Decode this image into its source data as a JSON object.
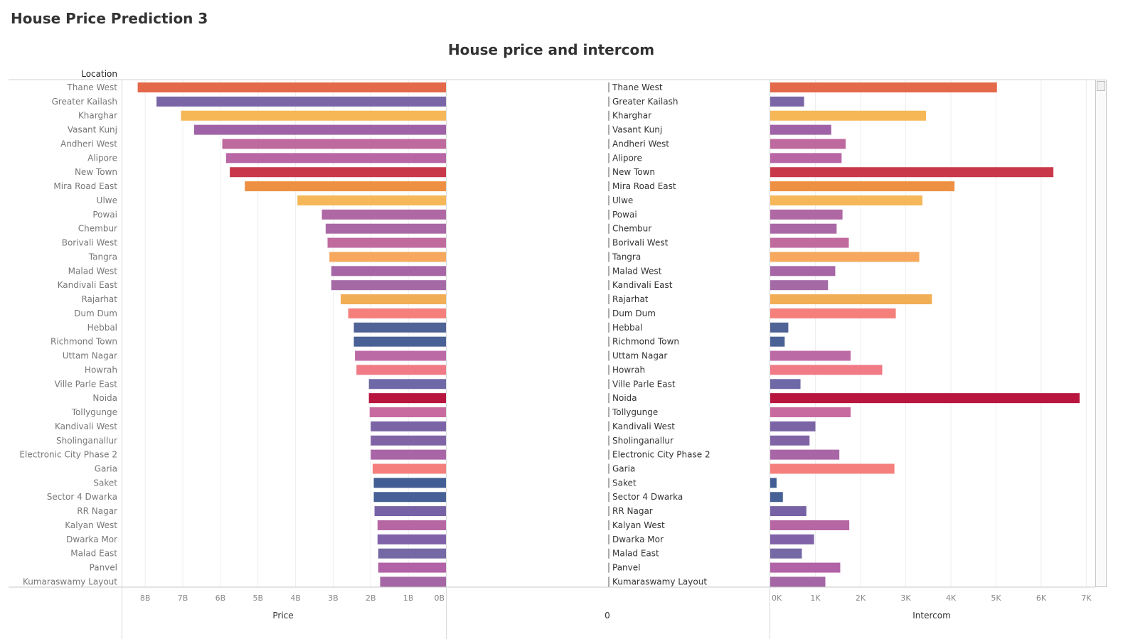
{
  "dashboard": {
    "title": "House Price Prediction 3"
  },
  "chart_data": {
    "type": "bar",
    "title": "House price and intercom",
    "row_header": "Location",
    "orientation": "horizontal",
    "grid": true,
    "categories": [
      "Thane West",
      "Greater Kailash",
      "Kharghar",
      "Vasant Kunj",
      "Andheri West",
      "Alipore",
      "New Town",
      "Mira Road East",
      "Ulwe",
      "Powai",
      "Chembur",
      "Borivali West",
      "Tangra",
      "Malad West",
      "Kandivali East",
      "Rajarhat",
      "Dum Dum",
      "Hebbal",
      "Richmond Town",
      "Uttam Nagar",
      "Howrah",
      "Ville Parle East",
      "Noida",
      "Tollygunge",
      "Kandivali West",
      "Sholinganallur",
      "Electronic City Phase 2",
      "Garia",
      "Saket",
      "Sector 4 Dwarka",
      "RR Nagar",
      "Kalyan West",
      "Dwarka Mor",
      "Malad East",
      "Panvel",
      "Kumaraswamy Layout"
    ],
    "colors": [
      "#E4684A",
      "#7A66A6",
      "#F5B757",
      "#A062A6",
      "#BE6A9E",
      "#B866A4",
      "#C8384A",
      "#EE9044",
      "#F5B757",
      "#B068A4",
      "#AA68A6",
      "#C06A9E",
      "#F6A95E",
      "#A666A6",
      "#A56AA6",
      "#F2AE55",
      "#F57F7A",
      "#4F6396",
      "#4A6196",
      "#BC6AA6",
      "#F07A85",
      "#6E69A6",
      "#B8163E",
      "#C86A9F",
      "#7A64A6",
      "#8064A6",
      "#A866A6",
      "#F57F7C",
      "#435E94",
      "#476096",
      "#7862A6",
      "#B666A3",
      "#8062A8",
      "#7468A5",
      "#B262A6",
      "#A466A5"
    ],
    "series": [
      {
        "name": "Price",
        "xlabel": "Price",
        "xlim": [
          0,
          8.4
        ],
        "tick_values": [
          8,
          7,
          6,
          5,
          4,
          3,
          2,
          1,
          0
        ],
        "tick_labels": [
          "8B",
          "7B",
          "6B",
          "5B",
          "4B",
          "3B",
          "2B",
          "1B",
          "0B"
        ],
        "values": [
          8.2,
          7.7,
          7.05,
          6.7,
          5.95,
          5.85,
          5.75,
          5.35,
          3.95,
          3.3,
          3.2,
          3.15,
          3.1,
          3.05,
          3.05,
          2.8,
          2.6,
          2.45,
          2.45,
          2.42,
          2.38,
          2.05,
          2.05,
          2.03,
          2.0,
          2.0,
          2.0,
          1.95,
          1.92,
          1.92,
          1.9,
          1.82,
          1.82,
          1.8,
          1.8,
          1.75
        ]
      },
      {
        "name": "0",
        "xlabel": "0"
      },
      {
        "name": "Intercom",
        "xlabel": "Intercom",
        "xlim": [
          0,
          7.0
        ],
        "tick_values": [
          0,
          1,
          2,
          3,
          4,
          5,
          6,
          7
        ],
        "tick_labels": [
          "0K",
          "1K",
          "2K",
          "3K",
          "4K",
          "5K",
          "6K",
          "7K"
        ],
        "values": [
          5.02,
          0.75,
          3.45,
          1.35,
          1.67,
          1.58,
          6.27,
          4.08,
          3.37,
          1.6,
          1.47,
          1.74,
          3.3,
          1.44,
          1.28,
          3.58,
          2.78,
          0.4,
          0.32,
          1.78,
          2.48,
          0.67,
          6.85,
          1.78,
          1.0,
          0.87,
          1.53,
          2.75,
          0.14,
          0.28,
          0.8,
          1.75,
          0.97,
          0.7,
          1.55,
          1.22
        ]
      }
    ]
  }
}
